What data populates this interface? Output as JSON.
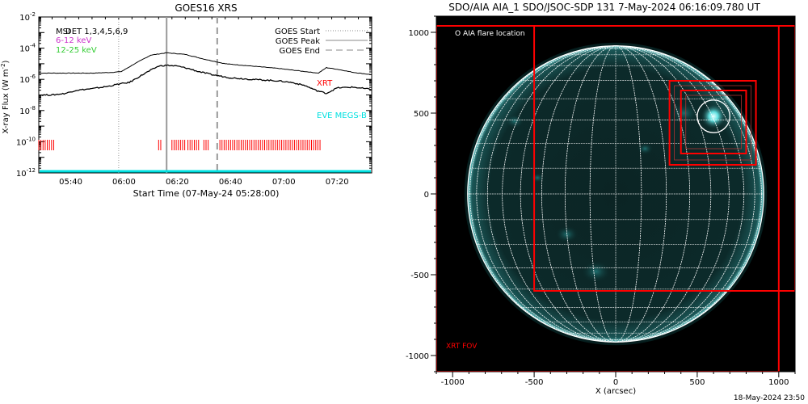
{
  "goes_panel": {
    "title": "GOES16 XRS",
    "ylabel_main": "X-ray Flux (W m",
    "ylabel_sup": "-2",
    "ylabel_close": ")",
    "xlabel": "Start Time (07-May-24 05:28:00)",
    "legend_left": [
      {
        "text": "MSI",
        "color": "#000000"
      },
      {
        "text": "DET 1,3,4,5,6,9",
        "color": "#000000"
      },
      {
        "text": "6-12 keV",
        "color": "#cc33cc"
      },
      {
        "text": "12-25 keV",
        "color": "#33cc33"
      }
    ],
    "legend_right": [
      {
        "text": "GOES Start",
        "style": "dotted"
      },
      {
        "text": "GOES Peak",
        "style": "solid"
      },
      {
        "text": "GOES End",
        "style": "dashed"
      }
    ],
    "annotations": {
      "xrt": "XRT",
      "eve": "EVE MEGS-B"
    },
    "colors": {
      "xrt": "#ff0000",
      "eve": "#00e0e0",
      "curve": "#000000",
      "marker": "#999999"
    }
  },
  "aia_panel": {
    "title": "SDO/AIA AIA_1 SDO/JSOC-SDP 131  7-May-2024 06:16:09.780 UT",
    "xlabel": "X (arcsec)",
    "legend": "O AIA flare location",
    "fov_label": "XRT FOV",
    "timestamp": "18-May-2024 23:50",
    "colors": {
      "fov": "#ff0000",
      "grid": "#ffffff",
      "disk": "#0a2a2a",
      "glow": "#00cccc"
    }
  },
  "chart_data": [
    {
      "type": "line",
      "title": "GOES16 XRS",
      "xlabel": "Start Time (07-May-24 05:28:00)",
      "ylabel": "X-ray Flux (W m-2)",
      "yscale": "log",
      "ylim": [
        1e-12,
        0.01
      ],
      "xlim_minutes": [
        0,
        125
      ],
      "x_tick_labels": [
        "05:40",
        "06:00",
        "06:20",
        "06:40",
        "07:00",
        "07:20"
      ],
      "x_tick_minutes": [
        12,
        32,
        52,
        72,
        92,
        112
      ],
      "y_tick_exponents": [
        -12,
        -10,
        -8,
        -6,
        -4,
        -2
      ],
      "markers_minutes": {
        "goes_start": 30,
        "goes_peak": 48,
        "goes_end": 67
      },
      "series": [
        {
          "name": "",
          "x_minutes": [
            0,
            10,
            20,
            28,
            31,
            36,
            42,
            48,
            55,
            62,
            70,
            80,
            90,
            100,
            105,
            108,
            112,
            118,
            125
          ],
          "y_log10": [
            -5.6,
            -5.6,
            -5.6,
            -5.55,
            -5.5,
            -5.0,
            -4.45,
            -4.3,
            -4.4,
            -4.7,
            -5.0,
            -5.15,
            -5.3,
            -5.5,
            -5.6,
            -5.25,
            -5.35,
            -5.55,
            -5.7
          ]
        },
        {
          "name": "",
          "x_minutes": [
            0,
            5,
            10,
            14,
            20,
            26,
            30,
            34,
            40,
            45,
            48,
            52,
            56,
            60,
            65,
            72,
            80,
            90,
            95,
            100,
            104,
            108,
            112,
            118,
            125
          ],
          "y_log10": [
            -7.0,
            -7.0,
            -6.9,
            -6.7,
            -6.6,
            -6.45,
            -6.3,
            -6.2,
            -5.6,
            -5.15,
            -5.1,
            -5.15,
            -5.3,
            -5.5,
            -5.7,
            -5.9,
            -6.0,
            -6.1,
            -6.2,
            -6.4,
            -6.7,
            -6.9,
            -6.55,
            -6.5,
            -6.65
          ]
        }
      ],
      "xrt_intervals_minutes": [
        [
          0,
          6
        ],
        [
          45,
          46
        ],
        [
          50,
          55
        ],
        [
          56,
          60
        ],
        [
          62,
          64
        ],
        [
          68,
          106
        ]
      ]
    },
    {
      "type": "scatter",
      "title": "SDO/AIA AIA_1 SDO/JSOC-SDP 131  7-May-2024 06:16:09.780 UT",
      "xlabel": "X (arcsec)",
      "xlim": [
        -1100,
        1100
      ],
      "ylim": [
        -1100,
        1100
      ],
      "x_tick_labels": [
        "-1000",
        "-500",
        "0",
        "500",
        "1000"
      ],
      "y_tick_labels": [
        "1000",
        "500",
        "0",
        "-500",
        "-1000"
      ],
      "tick_values": [
        -1000,
        -500,
        0,
        500,
        1000
      ],
      "solar_radius_arcsec": 908,
      "flare_location": [
        600,
        480
      ],
      "flare_circle_radius_arcsec": 100,
      "xrt_fov_boxes": [
        {
          "x0": -1100,
          "y0": -1100,
          "x1": 1000,
          "y1": 1040
        },
        {
          "x0": -500,
          "y0": -600,
          "x1": 1100,
          "y1": 1040
        },
        {
          "x0": 330,
          "y0": 180,
          "x1": 860,
          "y1": 700
        },
        {
          "x0": 400,
          "y0": 250,
          "x1": 800,
          "y1": 640
        }
      ]
    }
  ]
}
